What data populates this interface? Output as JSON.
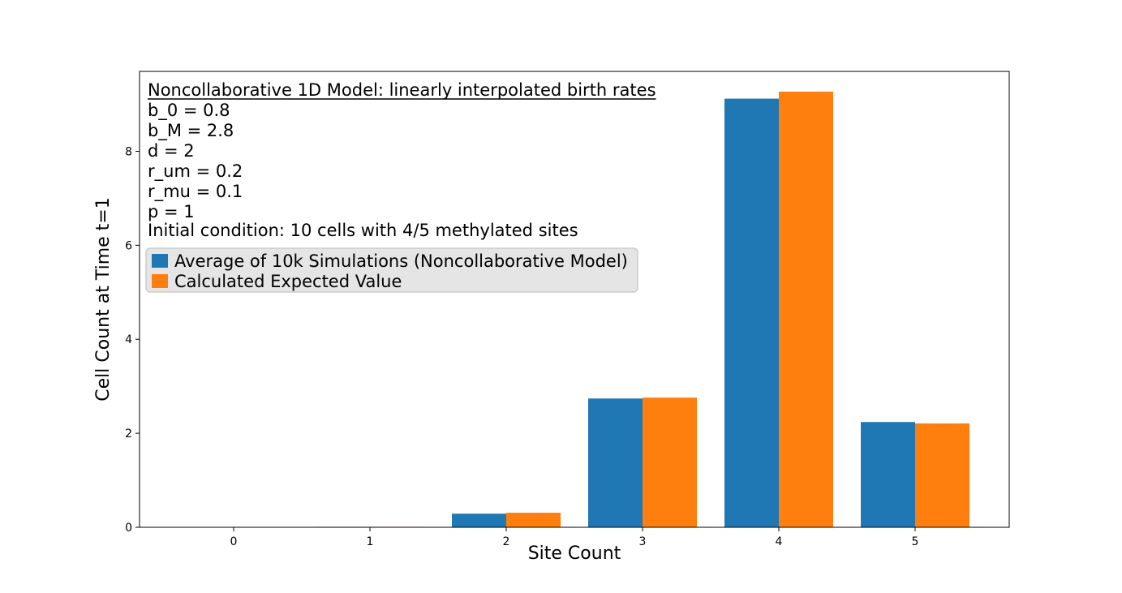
{
  "chart_data": {
    "type": "bar",
    "categories": [
      "0",
      "1",
      "2",
      "3",
      "4",
      "5"
    ],
    "series": [
      {
        "name": "Average of 10k Simulations (Noncollaborative Model)",
        "color": "#1f77b4",
        "values": [
          0.0,
          0.01,
          0.29,
          2.74,
          9.12,
          2.24
        ]
      },
      {
        "name": "Calculated Expected Value",
        "color": "#ff7f0e",
        "values": [
          0.0,
          0.01,
          0.31,
          2.76,
          9.27,
          2.21
        ]
      }
    ],
    "xlabel": "Site Count",
    "ylabel": "Cell Count at Time t=1",
    "ylim": [
      0,
      9.7
    ],
    "yticks": [
      "0",
      "2",
      "4",
      "6",
      "8"
    ],
    "grid": false,
    "legend_position": "upper-left"
  },
  "annotation": {
    "title": "Noncollaborative 1D Model: linearly interpolated birth rates",
    "lines": [
      "b_0 = 0.8",
      "b_M = 2.8",
      "d = 2",
      "r_um = 0.2",
      "r_mu = 0.1",
      "p = 1",
      "Initial condition: 10 cells with 4/5 methylated sites"
    ]
  }
}
